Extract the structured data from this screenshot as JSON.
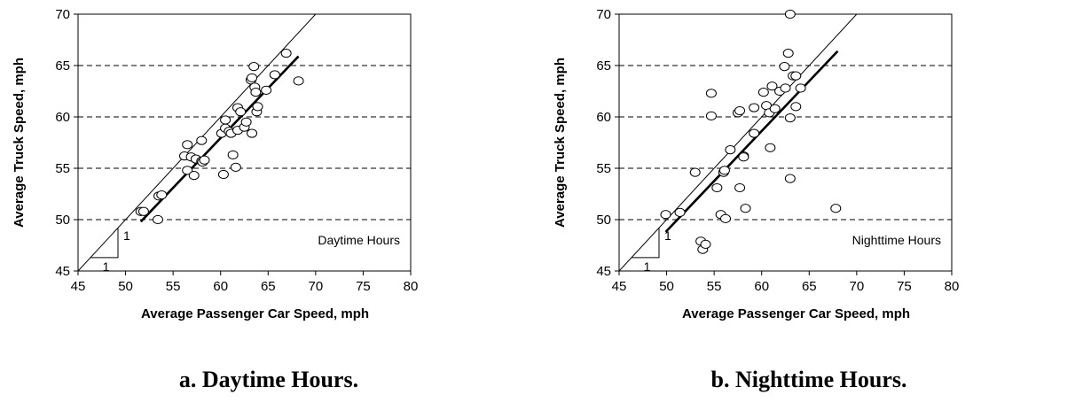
{
  "chart_data": [
    {
      "type": "scatter",
      "title": "",
      "xlabel": "Average Passenger Car Speed, mph",
      "ylabel": "Average Truck Speed, mph",
      "xlim": [
        45,
        80
      ],
      "ylim": [
        45,
        70
      ],
      "xticks": [
        45,
        50,
        55,
        60,
        65,
        70,
        75,
        80
      ],
      "yticks": [
        45,
        50,
        55,
        60,
        65,
        70
      ],
      "grid": "horizontal-dashed",
      "annotation": "Daytime Hours",
      "slope_label": "1",
      "caption": "a.  Daytime Hours.",
      "reference_line": {
        "x": [
          45,
          70.3
        ],
        "y": [
          45,
          70.3
        ]
      },
      "fit_line": {
        "x": [
          51.6,
          68.2
        ],
        "y": [
          49.8,
          65.9
        ]
      },
      "points": [
        [
          51.6,
          50.8
        ],
        [
          51.9,
          50.8
        ],
        [
          53.4,
          50.0
        ],
        [
          53.5,
          52.3
        ],
        [
          53.8,
          52.4
        ],
        [
          56.2,
          56.2
        ],
        [
          56.5,
          57.3
        ],
        [
          56.5,
          54.8
        ],
        [
          56.9,
          56.1
        ],
        [
          57.2,
          54.3
        ],
        [
          57.4,
          55.9
        ],
        [
          58.0,
          57.7
        ],
        [
          58.0,
          55.7
        ],
        [
          58.1,
          55.6
        ],
        [
          58.3,
          55.8
        ],
        [
          60.1,
          58.4
        ],
        [
          60.3,
          54.4
        ],
        [
          60.5,
          59.7
        ],
        [
          60.5,
          58.9
        ],
        [
          60.9,
          58.6
        ],
        [
          61.1,
          58.4
        ],
        [
          61.3,
          56.3
        ],
        [
          61.6,
          55.1
        ],
        [
          61.8,
          58.7
        ],
        [
          61.8,
          60.9
        ],
        [
          62.1,
          60.5
        ],
        [
          62.5,
          59.0
        ],
        [
          62.7,
          59.5
        ],
        [
          63.2,
          63.6
        ],
        [
          63.3,
          63.8
        ],
        [
          63.3,
          58.4
        ],
        [
          63.5,
          64.9
        ],
        [
          63.6,
          62.9
        ],
        [
          63.7,
          62.4
        ],
        [
          63.8,
          60.5
        ],
        [
          63.9,
          61.0
        ],
        [
          64.8,
          62.6
        ],
        [
          65.7,
          64.1
        ],
        [
          66.9,
          66.2
        ],
        [
          68.2,
          63.5
        ]
      ]
    },
    {
      "type": "scatter",
      "title": "",
      "xlabel": "Average Passenger Car Speed, mph",
      "ylabel": "Average Truck Speed, mph",
      "xlim": [
        45,
        80
      ],
      "ylim": [
        45,
        70
      ],
      "xticks": [
        45,
        50,
        55,
        60,
        65,
        70,
        75,
        80
      ],
      "yticks": [
        45,
        50,
        55,
        60,
        65,
        70
      ],
      "grid": "horizontal-dashed",
      "annotation": "Nighttime Hours",
      "slope_label": "1",
      "caption": "b.  Nighttime Hours.",
      "reference_line": {
        "x": [
          45,
          70.3
        ],
        "y": [
          45,
          70.3
        ]
      },
      "fit_line": {
        "x": [
          49.9,
          68.0
        ],
        "y": [
          48.8,
          66.4
        ]
      },
      "points": [
        [
          49.9,
          50.5
        ],
        [
          51.4,
          50.7
        ],
        [
          53.0,
          54.6
        ],
        [
          53.6,
          47.9
        ],
        [
          53.8,
          47.1
        ],
        [
          54.1,
          47.6
        ],
        [
          54.7,
          62.3
        ],
        [
          54.7,
          60.1
        ],
        [
          55.3,
          53.1
        ],
        [
          55.7,
          50.5
        ],
        [
          56.0,
          54.6
        ],
        [
          56.1,
          54.8
        ],
        [
          56.2,
          50.1
        ],
        [
          56.7,
          56.8
        ],
        [
          57.5,
          60.4
        ],
        [
          57.7,
          60.6
        ],
        [
          57.7,
          53.1
        ],
        [
          58.1,
          56.2
        ],
        [
          58.1,
          56.1
        ],
        [
          58.3,
          51.1
        ],
        [
          59.2,
          58.4
        ],
        [
          59.2,
          60.9
        ],
        [
          60.2,
          62.4
        ],
        [
          60.5,
          61.1
        ],
        [
          60.8,
          60.4
        ],
        [
          60.9,
          57.0
        ],
        [
          61.1,
          63.0
        ],
        [
          61.4,
          60.8
        ],
        [
          61.9,
          62.5
        ],
        [
          62.4,
          64.9
        ],
        [
          62.5,
          62.8
        ],
        [
          62.8,
          66.2
        ],
        [
          63.0,
          70.0
        ],
        [
          63.0,
          59.9
        ],
        [
          63.0,
          54.0
        ],
        [
          63.3,
          64.0
        ],
        [
          63.6,
          61.0
        ],
        [
          63.6,
          64.0
        ],
        [
          64.1,
          62.8
        ],
        [
          67.8,
          51.1
        ]
      ]
    }
  ]
}
